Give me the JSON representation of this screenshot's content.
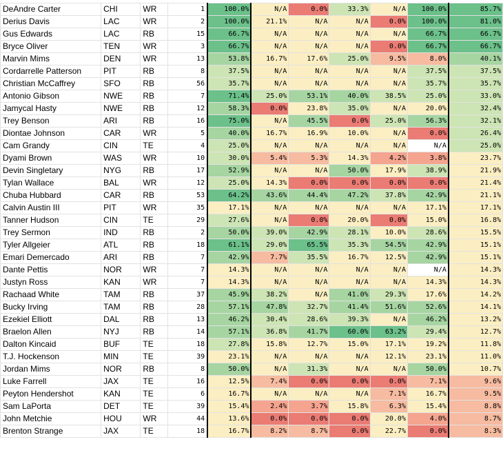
{
  "colors": {
    "dark_green": "#6cc08a",
    "mid_green": "#a6d5a2",
    "light_green": "#cde4b4",
    "cream": "#fbeec2",
    "peach": "#f6bba0",
    "salmon": "#f4a48f",
    "red": "#ea7c74",
    "white": "#ffffff"
  },
  "rows": [
    {
      "name": "DeAndre Carter",
      "team": "CHI",
      "pos": "WR",
      "num": "1",
      "c1": "100.0%",
      "c2": "N/A",
      "c3": "0.0%",
      "c4": "33.3%",
      "c5": "N/A",
      "c6": "100.0%",
      "c7": "85.7%"
    },
    {
      "name": "Derius Davis",
      "team": "LAC",
      "pos": "WR",
      "num": "2",
      "c1": "100.0%",
      "c2": "21.1%",
      "c3": "N/A",
      "c4": "N/A",
      "c5": "0.0%",
      "c6": "100.0%",
      "c7": "81.0%"
    },
    {
      "name": "Gus Edwards",
      "team": "LAC",
      "pos": "RB",
      "num": "15",
      "c1": "66.7%",
      "c2": "N/A",
      "c3": "N/A",
      "c4": "N/A",
      "c5": "N/A",
      "c6": "66.7%",
      "c7": "66.7%"
    },
    {
      "name": "Bryce Oliver",
      "team": "TEN",
      "pos": "WR",
      "num": "3",
      "c1": "66.7%",
      "c2": "N/A",
      "c3": "N/A",
      "c4": "N/A",
      "c5": "0.0%",
      "c6": "66.7%",
      "c7": "66.7%"
    },
    {
      "name": "Marvin Mims",
      "team": "DEN",
      "pos": "WR",
      "num": "13",
      "c1": "53.8%",
      "c2": "16.7%",
      "c3": "17.6%",
      "c4": "25.0%",
      "c5": "9.5%",
      "c6": "8.0%",
      "c7": "40.1%"
    },
    {
      "name": "Cordarrelle Patterson",
      "team": "PIT",
      "pos": "RB",
      "num": "8",
      "c1": "37.5%",
      "c2": "N/A",
      "c3": "N/A",
      "c4": "N/A",
      "c5": "N/A",
      "c6": "37.5%",
      "c7": "37.5%"
    },
    {
      "name": "Christian McCaffrey",
      "team": "SFO",
      "pos": "RB",
      "num": "56",
      "c1": "35.7%",
      "c2": "N/A",
      "c3": "N/A",
      "c4": "N/A",
      "c5": "N/A",
      "c6": "35.7%",
      "c7": "35.7%"
    },
    {
      "name": "Antonio Gibson",
      "team": "NWE",
      "pos": "RB",
      "num": "7",
      "c1": "71.4%",
      "c2": "25.0%",
      "c3": "53.1%",
      "c4": "40.0%",
      "c5": "38.5%",
      "c6": "25.0%",
      "c7": "33.0%"
    },
    {
      "name": "Jamycal Hasty",
      "team": "NWE",
      "pos": "RB",
      "num": "12",
      "c1": "58.3%",
      "c2": "0.0%",
      "c3": "23.8%",
      "c4": "35.0%",
      "c5": "N/A",
      "c6": "20.0%",
      "c7": "32.4%"
    },
    {
      "name": "Trey Benson",
      "team": "ARI",
      "pos": "RB",
      "num": "16",
      "c1": "75.0%",
      "c2": "N/A",
      "c3": "45.5%",
      "c4": "0.0%",
      "c5": "25.0%",
      "c6": "56.3%",
      "c7": "32.1%"
    },
    {
      "name": "Diontae Johnson",
      "team": "CAR",
      "pos": "WR",
      "num": "5",
      "c1": "40.0%",
      "c2": "16.7%",
      "c3": "16.9%",
      "c4": "10.0%",
      "c5": "N/A",
      "c6": "0.0%",
      "c7": "26.4%"
    },
    {
      "name": "Cam Grandy",
      "team": "CIN",
      "pos": "TE",
      "num": "4",
      "c1": "25.0%",
      "c2": "N/A",
      "c3": "N/A",
      "c4": "N/A",
      "c5": "N/A",
      "c6": "N/A",
      "c7": "25.0%"
    },
    {
      "name": "Dyami Brown",
      "team": "WAS",
      "pos": "WR",
      "num": "10",
      "c1": "30.0%",
      "c2": "5.4%",
      "c3": "5.3%",
      "c4": "14.3%",
      "c5": "4.2%",
      "c6": "3.8%",
      "c7": "23.7%"
    },
    {
      "name": "Devin Singletary",
      "team": "NYG",
      "pos": "RB",
      "num": "17",
      "c1": "52.9%",
      "c2": "N/A",
      "c3": "N/A",
      "c4": "50.0%",
      "c5": "17.9%",
      "c6": "38.9%",
      "c7": "21.9%"
    },
    {
      "name": "Tylan Wallace",
      "team": "BAL",
      "pos": "WR",
      "num": "12",
      "c1": "25.0%",
      "c2": "14.3%",
      "c3": "0.0%",
      "c4": "0.0%",
      "c5": "0.0%",
      "c6": "0.0%",
      "c7": "21.4%"
    },
    {
      "name": "Chuba Hubbard",
      "team": "CAR",
      "pos": "RB",
      "num": "53",
      "c1": "64.2%",
      "c2": "43.6%",
      "c3": "44.4%",
      "c4": "47.2%",
      "c5": "37.8%",
      "c6": "42.9%",
      "c7": "21.1%"
    },
    {
      "name": "Calvin Austin III",
      "team": "PIT",
      "pos": "WR",
      "num": "35",
      "c1": "17.1%",
      "c2": "N/A",
      "c3": "N/A",
      "c4": "N/A",
      "c5": "N/A",
      "c6": "17.1%",
      "c7": "17.1%"
    },
    {
      "name": "Tanner Hudson",
      "team": "CIN",
      "pos": "TE",
      "num": "29",
      "c1": "27.6%",
      "c2": "N/A",
      "c3": "0.0%",
      "c4": "20.0%",
      "c5": "0.0%",
      "c6": "15.0%",
      "c7": "16.8%"
    },
    {
      "name": "Trey Sermon",
      "team": "IND",
      "pos": "RB",
      "num": "2",
      "c1": "50.0%",
      "c2": "39.0%",
      "c3": "42.9%",
      "c4": "28.1%",
      "c5": "10.0%",
      "c6": "28.6%",
      "c7": "15.5%"
    },
    {
      "name": "Tyler Allgeier",
      "team": "ATL",
      "pos": "RB",
      "num": "18",
      "c1": "61.1%",
      "c2": "29.0%",
      "c3": "65.5%",
      "c4": "35.3%",
      "c5": "54.5%",
      "c6": "42.9%",
      "c7": "15.1%"
    },
    {
      "name": "Emari Demercado",
      "team": "ARI",
      "pos": "RB",
      "num": "7",
      "c1": "42.9%",
      "c2": "7.7%",
      "c3": "35.5%",
      "c4": "16.7%",
      "c5": "12.5%",
      "c6": "42.9%",
      "c7": "15.1%"
    },
    {
      "name": "Dante Pettis",
      "team": "NOR",
      "pos": "WR",
      "num": "7",
      "c1": "14.3%",
      "c2": "N/A",
      "c3": "N/A",
      "c4": "N/A",
      "c5": "N/A",
      "c6": "N/A",
      "c7": "14.3%"
    },
    {
      "name": "Justyn Ross",
      "team": "KAN",
      "pos": "WR",
      "num": "7",
      "c1": "14.3%",
      "c2": "N/A",
      "c3": "N/A",
      "c4": "N/A",
      "c5": "N/A",
      "c6": "14.3%",
      "c7": "14.3%"
    },
    {
      "name": "Rachaad White",
      "team": "TAM",
      "pos": "RB",
      "num": "37",
      "c1": "45.9%",
      "c2": "38.2%",
      "c3": "N/A",
      "c4": "41.0%",
      "c5": "29.3%",
      "c6": "17.6%",
      "c7": "14.2%"
    },
    {
      "name": "Bucky Irving",
      "team": "TAM",
      "pos": "RB",
      "num": "28",
      "c1": "57.1%",
      "c2": "47.8%",
      "c3": "32.7%",
      "c4": "41.4%",
      "c5": "51.6%",
      "c6": "52.6%",
      "c7": "14.1%"
    },
    {
      "name": "Ezekiel Elliott",
      "team": "DAL",
      "pos": "RB",
      "num": "13",
      "c1": "46.2%",
      "c2": "30.4%",
      "c3": "28.6%",
      "c4": "39.3%",
      "c5": "N/A",
      "c6": "46.2%",
      "c7": "13.2%"
    },
    {
      "name": "Braelon Allen",
      "team": "NYJ",
      "pos": "RB",
      "num": "14",
      "c1": "57.1%",
      "c2": "36.8%",
      "c3": "41.7%",
      "c4": "60.0%",
      "c5": "63.2%",
      "c6": "29.4%",
      "c7": "12.7%"
    },
    {
      "name": "Dalton Kincaid",
      "team": "BUF",
      "pos": "TE",
      "num": "18",
      "c1": "27.8%",
      "c2": "15.8%",
      "c3": "12.7%",
      "c4": "15.0%",
      "c5": "17.1%",
      "c6": "19.2%",
      "c7": "11.8%"
    },
    {
      "name": "T.J. Hockenson",
      "team": "MIN",
      "pos": "TE",
      "num": "39",
      "c1": "23.1%",
      "c2": "N/A",
      "c3": "N/A",
      "c4": "N/A",
      "c5": "12.1%",
      "c6": "23.1%",
      "c7": "11.0%"
    },
    {
      "name": "Jordan Mims",
      "team": "NOR",
      "pos": "RB",
      "num": "8",
      "c1": "50.0%",
      "c2": "N/A",
      "c3": "31.3%",
      "c4": "N/A",
      "c5": "N/A",
      "c6": "50.0%",
      "c7": "10.7%"
    },
    {
      "name": "Luke Farrell",
      "team": "JAX",
      "pos": "TE",
      "num": "16",
      "c1": "12.5%",
      "c2": "7.4%",
      "c3": "0.0%",
      "c4": "0.0%",
      "c5": "0.0%",
      "c6": "7.1%",
      "c7": "9.6%"
    },
    {
      "name": "Peyton Hendershot",
      "team": "KAN",
      "pos": "TE",
      "num": "6",
      "c1": "16.7%",
      "c2": "N/A",
      "c3": "N/A",
      "c4": "N/A",
      "c5": "7.1%",
      "c6": "16.7%",
      "c7": "9.5%"
    },
    {
      "name": "Sam LaPorta",
      "team": "DET",
      "pos": "TE",
      "num": "39",
      "c1": "15.4%",
      "c2": "2.4%",
      "c3": "3.7%",
      "c4": "15.8%",
      "c5": "6.3%",
      "c6": "15.4%",
      "c7": "8.8%"
    },
    {
      "name": "John Metchie",
      "team": "HOU",
      "pos": "WR",
      "num": "44",
      "c1": "13.6%",
      "c2": "0.0%",
      "c3": "0.0%",
      "c4": "0.0%",
      "c5": "20.0%",
      "c6": "4.0%",
      "c7": "8.7%"
    },
    {
      "name": "Brenton Strange",
      "team": "JAX",
      "pos": "TE",
      "num": "18",
      "c1": "16.7%",
      "c2": "8.2%",
      "c3": "8.7%",
      "c4": "0.0%",
      "c5": "22.7%",
      "c6": "0.0%",
      "c7": "8.3%"
    }
  ]
}
